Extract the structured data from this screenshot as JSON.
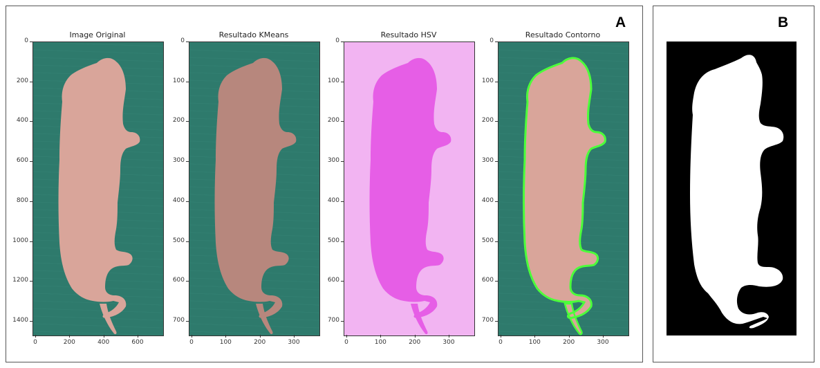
{
  "panel_a": {
    "letter": "A",
    "subplots": [
      {
        "title": "Image Original",
        "y_ticks": [
          "0",
          "200",
          "400",
          "600",
          "800",
          "1000",
          "1200",
          "1400"
        ],
        "x_ticks": [
          "0",
          "200",
          "400",
          "600"
        ],
        "background_color": "#2e7a6c",
        "mouse_color": "#d9a59a"
      },
      {
        "title": "Resultado KMeans",
        "y_ticks": [
          "0",
          "100",
          "200",
          "300",
          "400",
          "500",
          "600",
          "700"
        ],
        "x_ticks": [
          "0",
          "100",
          "200",
          "300"
        ],
        "background_color": "#2e7a6c",
        "mouse_color": "#b7877d"
      },
      {
        "title": "Resultado HSV",
        "y_ticks": [
          "0",
          "100",
          "200",
          "300",
          "400",
          "500",
          "600",
          "700"
        ],
        "x_ticks": [
          "0",
          "100",
          "200",
          "300"
        ],
        "background_color": "#f2b4f2",
        "mouse_color": "#e65ee6"
      },
      {
        "title": "Resultado Contorno",
        "y_ticks": [
          "0",
          "100",
          "200",
          "300",
          "400",
          "500",
          "600",
          "700"
        ],
        "x_ticks": [
          "0",
          "100",
          "200",
          "300"
        ],
        "background_color": "#2e7a6c",
        "mouse_color": "#d9a59a",
        "contour_color": "#4cff3a"
      }
    ]
  },
  "panel_b": {
    "letter": "B",
    "background_color": "#000000",
    "mask_color": "#ffffff"
  }
}
